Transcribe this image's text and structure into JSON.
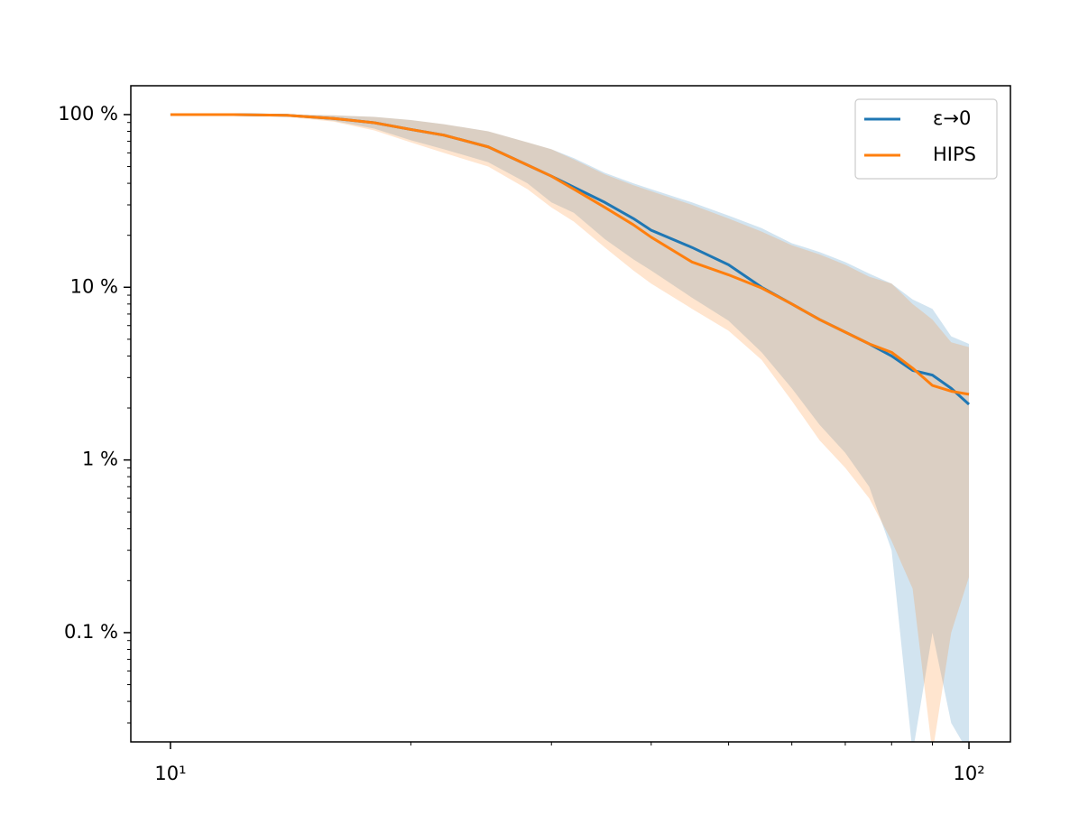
{
  "chart_data": {
    "type": "line",
    "x": [
      10,
      12,
      14,
      16,
      18,
      20,
      22,
      25,
      28,
      30,
      32,
      35,
      38,
      40,
      45,
      50,
      55,
      60,
      65,
      70,
      75,
      80,
      85,
      90,
      95,
      100
    ],
    "series": [
      {
        "name": "ε→0",
        "color": "#1f77b4",
        "values": [
          100,
          100,
          99,
          95,
          89.7,
          82,
          76,
          65,
          51,
          44,
          38,
          31,
          25,
          21.4,
          17,
          13.5,
          10,
          8,
          6.5,
          5.5,
          4.7,
          4.0,
          3.3,
          3.1,
          2.6,
          2.1
        ],
        "upper": [
          100,
          100,
          100,
          99,
          97,
          93,
          88,
          80,
          69,
          63,
          56,
          46,
          40,
          37,
          31,
          26,
          22,
          18,
          16,
          14,
          12,
          10.5,
          8.5,
          7.5,
          5.2,
          4.7
        ],
        "lower": [
          100,
          100,
          98,
          92,
          83,
          71,
          63,
          53,
          40,
          31,
          27,
          19,
          14.5,
          12.5,
          8.7,
          6.4,
          4.2,
          2.6,
          1.6,
          1.1,
          0.7,
          0.3,
          0.02,
          0.1,
          0.03,
          0.02
        ]
      },
      {
        "name": "HIPS",
        "color": "#ff7f0e",
        "values": [
          100,
          100,
          99,
          95,
          89.7,
          82,
          76,
          65,
          51,
          44,
          37,
          29,
          23,
          19.5,
          14,
          11.8,
          9.9,
          8,
          6.5,
          5.5,
          4.7,
          4.2,
          3.4,
          2.7,
          2.5,
          2.4
        ],
        "upper": [
          100,
          100,
          100,
          99,
          97,
          93,
          88,
          80,
          69,
          63,
          55,
          45,
          39,
          36,
          30,
          25,
          21,
          17.5,
          15.5,
          13.5,
          11.5,
          10.5,
          8,
          6.5,
          4.8,
          4.5
        ],
        "lower": [
          100,
          100,
          97,
          91,
          81,
          69,
          60,
          50,
          37,
          29,
          24,
          17,
          12.5,
          10.5,
          7.5,
          5.6,
          3.8,
          2.2,
          1.3,
          0.9,
          0.6,
          0.34,
          0.18,
          0.02,
          0.1,
          0.21
        ]
      }
    ],
    "xlim": [
      8.92,
      112.7
    ],
    "ylim": [
      0.0233,
      146.9
    ],
    "xscale": "log",
    "yscale": "log",
    "xticks": [
      {
        "value": 10,
        "label": "10¹"
      },
      {
        "value": 100,
        "label": "10²"
      }
    ],
    "xminorticks": [
      20,
      30,
      40,
      50,
      60,
      70,
      80,
      90
    ],
    "yticks": [
      {
        "value": 0.1,
        "label": "0.1 %"
      },
      {
        "value": 1,
        "label": "1 %"
      },
      {
        "value": 10,
        "label": "10 %"
      },
      {
        "value": 100,
        "label": "100 %"
      }
    ],
    "yminorticks": [
      0.03,
      0.04,
      0.05,
      0.06,
      0.07,
      0.08,
      0.09,
      0.2,
      0.3,
      0.4,
      0.5,
      0.6,
      0.7,
      0.8,
      0.9,
      2,
      3,
      4,
      5,
      6,
      7,
      8,
      9,
      20,
      30,
      40,
      50,
      60,
      70,
      80,
      90
    ],
    "band_opacity": 0.2,
    "legend": "upper right"
  }
}
